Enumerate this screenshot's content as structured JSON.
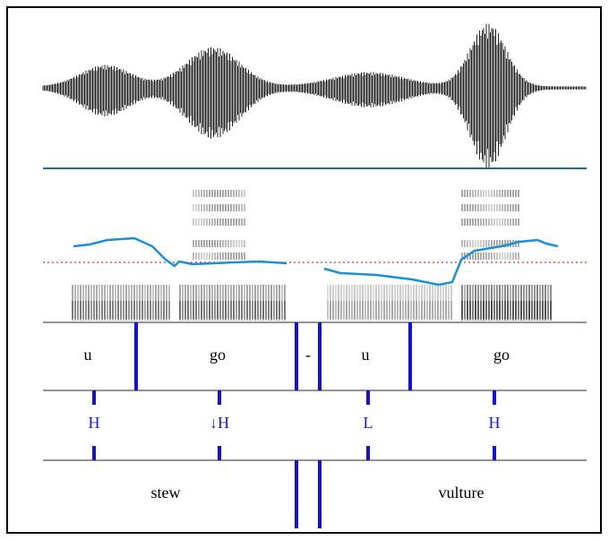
{
  "syllable_tier": {
    "labels": [
      "u",
      "go",
      "-",
      "u",
      "go"
    ]
  },
  "tone_tier": {
    "labels": [
      "H",
      "↓H",
      "L",
      "H"
    ]
  },
  "word_tier": {
    "labels": [
      "stew",
      "vulture"
    ]
  }
}
